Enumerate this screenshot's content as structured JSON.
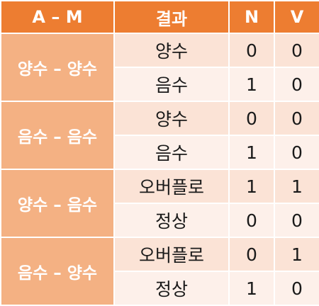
{
  "colors": {
    "header_bg": "#ed7d31",
    "group_bg": "#f4b183",
    "row_bg_a": "#fbe3d6",
    "row_bg_b": "#fdf0ea",
    "header_text": "#ffffff",
    "body_text": "#1a1a1a"
  },
  "table": {
    "headers": [
      "A – M",
      "결과",
      "N",
      "V"
    ],
    "groups": [
      {
        "label": "양수 – 양수",
        "rows": [
          {
            "result": "양수",
            "n": "0",
            "v": "0"
          },
          {
            "result": "음수",
            "n": "1",
            "v": "0"
          }
        ]
      },
      {
        "label": "음수 – 음수",
        "rows": [
          {
            "result": "양수",
            "n": "0",
            "v": "0"
          },
          {
            "result": "음수",
            "n": "1",
            "v": "0"
          }
        ]
      },
      {
        "label": "양수 – 음수",
        "rows": [
          {
            "result": "오버플로",
            "n": "1",
            "v": "1"
          },
          {
            "result": "정상",
            "n": "0",
            "v": "0"
          }
        ]
      },
      {
        "label": "음수 – 양수",
        "rows": [
          {
            "result": "오버플로",
            "n": "0",
            "v": "1"
          },
          {
            "result": "정상",
            "n": "1",
            "v": "0"
          }
        ]
      }
    ]
  }
}
